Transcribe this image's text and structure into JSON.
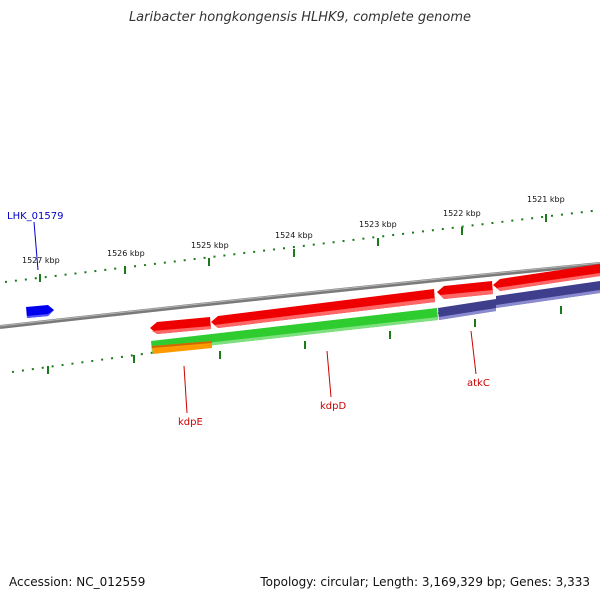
{
  "header": {
    "title": "Laribacter hongkongensis HLHK9, complete genome"
  },
  "footer": {
    "accession": "Accession: NC_012559",
    "stats": "Topology: circular; Length: 3,169,329 bp; Genes: 3,333"
  },
  "scale_labels": [
    "1527 kbp",
    "1526 kbp",
    "1525 kbp",
    "1524 kbp",
    "1523 kbp",
    "1522 kbp",
    "1521 kbp"
  ],
  "gene_labels": [
    {
      "text": "LHK_01579",
      "color": "#0000cc"
    },
    {
      "text": "kdpE",
      "color": "#cc0000"
    },
    {
      "text": "kdpD",
      "color": "#cc0000"
    },
    {
      "text": "atkC",
      "color": "#cc0000"
    }
  ],
  "colors": {
    "cds": "#ff0000",
    "gene": "#2ecc2e",
    "orange_feature": "#ff9900",
    "purple_feature": "#4a4a9a",
    "blue_feature": "#0000ee",
    "tick": "#1a7a1a",
    "backbone": "#808080"
  }
}
